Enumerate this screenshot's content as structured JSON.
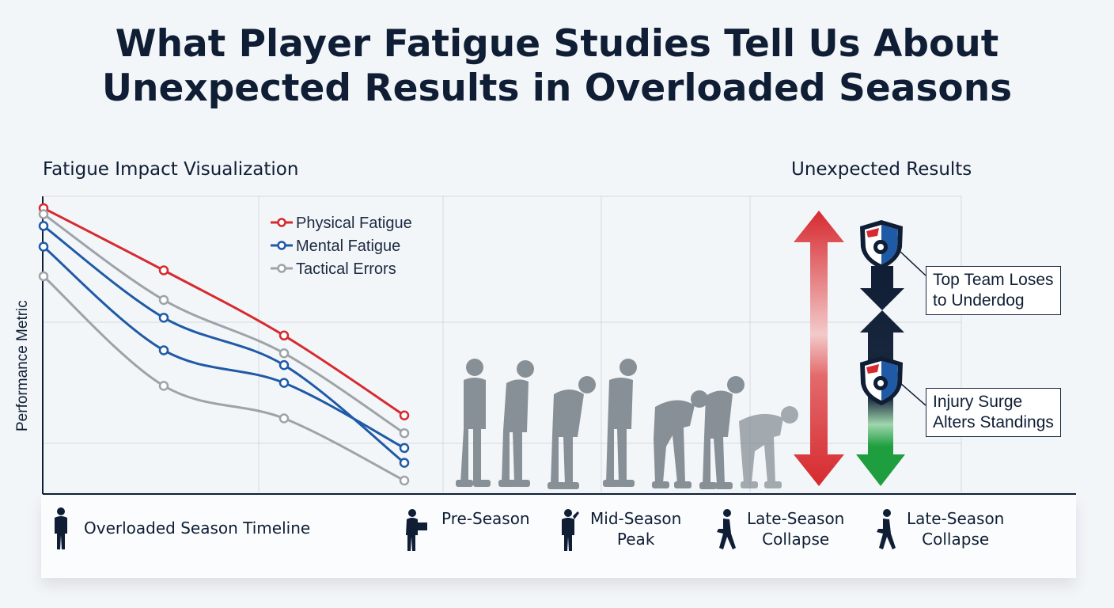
{
  "header": {
    "title_line1": "What Player Fatigue Studies Tell Us About",
    "title_line2": "Unexpected Results in Overloaded Seasons"
  },
  "left_panel": {
    "subtitle": "Fatigue Impact Visualization"
  },
  "right_panel": {
    "subtitle": "Unexpected Results"
  },
  "chart_data": {
    "type": "line",
    "ylabel": "Performance Metric",
    "grid": true,
    "legend_position": "top-center",
    "x": [
      0,
      1,
      2,
      3
    ],
    "ylim": [
      0,
      100
    ],
    "series": [
      {
        "name": "Physical Fatigue",
        "color": "#d62a2f",
        "values": [
          96,
          75,
          53,
          26
        ]
      },
      {
        "name": "Mental Fatigue",
        "color": "#1f5aa6",
        "values": [
          90,
          59,
          43,
          10
        ]
      },
      {
        "name": "Tactical Errors",
        "color": "#9ea3a9",
        "values": [
          94,
          65,
          47,
          20
        ]
      },
      {
        "name": "",
        "color": "#1f5aa6",
        "values": [
          83,
          48,
          37,
          15
        ]
      },
      {
        "name": "",
        "color": "#9ea3a9",
        "values": [
          73,
          36,
          25,
          4
        ]
      }
    ]
  },
  "timeline": {
    "label": "Overloaded Season Timeline",
    "stages": [
      {
        "line1": "Pre-Season",
        "line2": ""
      },
      {
        "line1": "Mid-Season",
        "line2": "Peak"
      },
      {
        "line1": "Late-Season",
        "line2": "Collapse"
      },
      {
        "line1": "Late-Season",
        "line2": "Collapse"
      }
    ]
  },
  "callouts": {
    "top": {
      "line1": "Top Team Loses",
      "line2": "to Underdog"
    },
    "bottom": {
      "line1": "Injury Surge",
      "line2": "Alters Standings"
    }
  },
  "icons": {
    "silhouettes": "fatigued-player-silhouette-icon",
    "shield": "team-shield-icon",
    "arrow": "double-arrow-icon",
    "timeline_person": "person-icon"
  },
  "colors": {
    "navy": "#0f1e35",
    "red": "#d62a2f",
    "blue": "#1f5aa6",
    "gray": "#9ea3a9",
    "green": "#1e9e3e",
    "silhouette": "#7d858d"
  }
}
